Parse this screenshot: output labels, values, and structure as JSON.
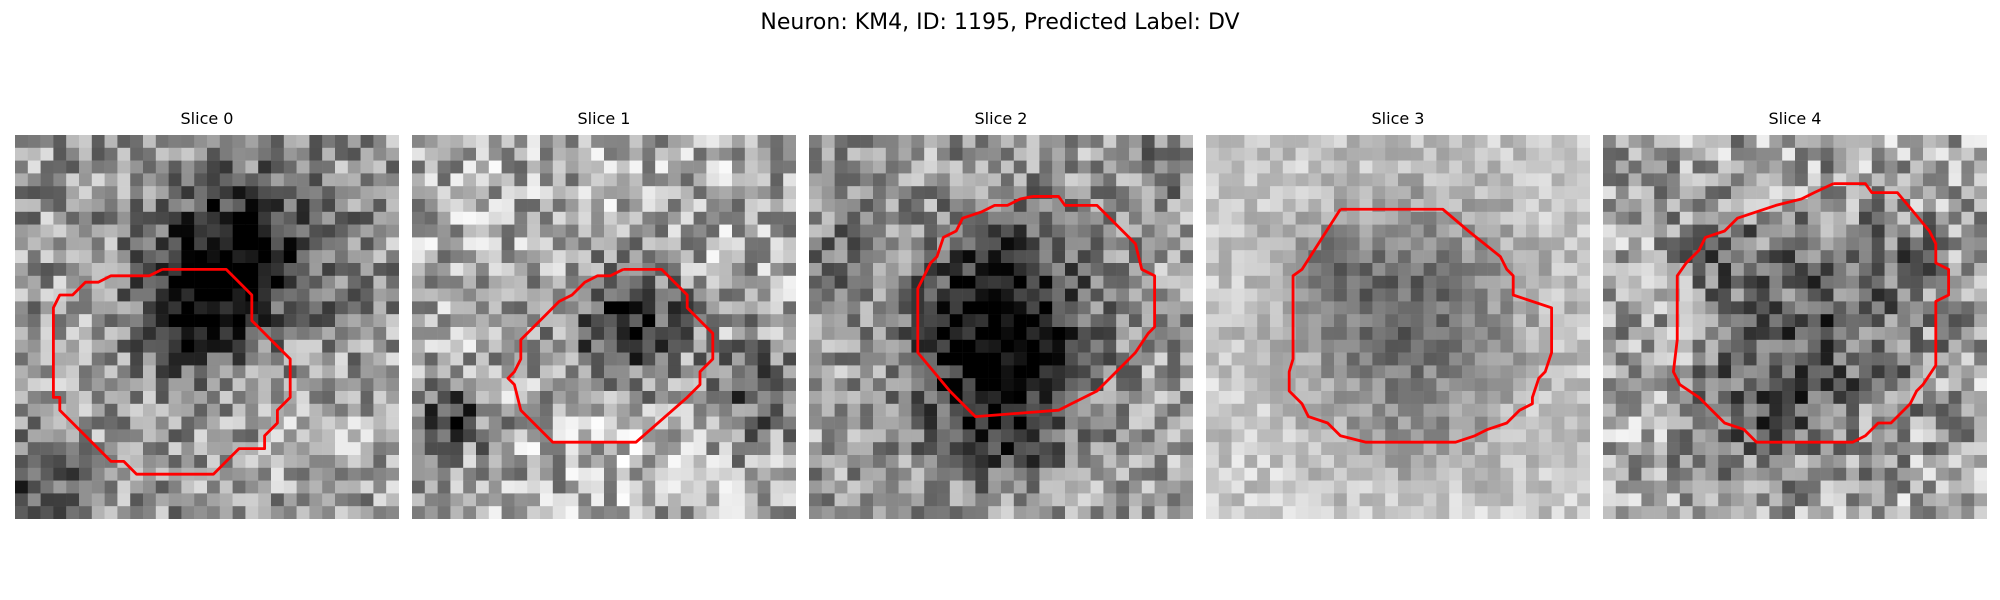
{
  "figure": {
    "title": "Neuron: KM4, ID: 1195, Predicted Label: DV"
  },
  "panels": [
    {
      "title": "Slice 0",
      "contour_color": "#ff0000"
    },
    {
      "title": "Slice 1",
      "contour_color": "#ff0000"
    },
    {
      "title": "Slice 2",
      "contour_color": "#ff0000"
    },
    {
      "title": "Slice 3",
      "contour_color": "#ff0000"
    },
    {
      "title": "Slice 4",
      "contour_color": "#ff0000"
    }
  ],
  "colormap": "gray"
}
